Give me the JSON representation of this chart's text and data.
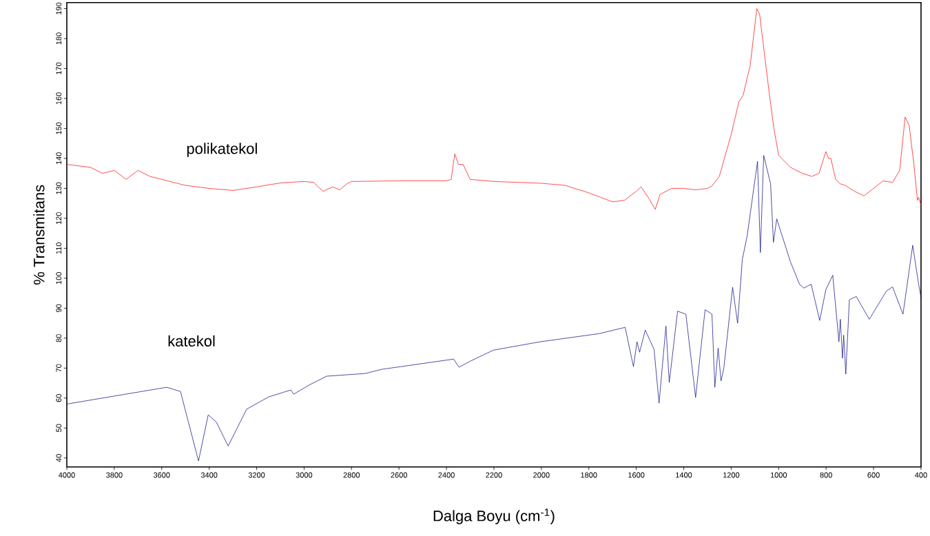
{
  "chart_data": {
    "type": "line",
    "xlabel": "Dalga Boyu (cm$^{-1}$)",
    "ylabel": "% Transmitans",
    "xlim": [
      4000,
      400
    ],
    "ylim": [
      37,
      192
    ],
    "xticks": [
      4000,
      3800,
      3600,
      3400,
      3200,
      3000,
      2800,
      2600,
      2400,
      2200,
      2000,
      1800,
      1600,
      1400,
      1200,
      1000,
      800,
      600,
      400
    ],
    "yticks": [
      40,
      50,
      60,
      70,
      80,
      90,
      100,
      110,
      120,
      130,
      140,
      150,
      160,
      170,
      180,
      190
    ],
    "grid": false,
    "legend": false,
    "marker": "none",
    "line_style": "solid",
    "series": [
      {
        "name": "polikatekol",
        "color": "#ff0000",
        "x": [
          4000,
          3900,
          3850,
          3800,
          3750,
          3700,
          3650,
          3600,
          3500,
          3400,
          3300,
          3200,
          3100,
          3000,
          2960,
          2920,
          2880,
          2850,
          2820,
          2800,
          2600,
          2400,
          2380,
          2365,
          2350,
          2330,
          2300,
          2200,
          2000,
          1900,
          1800,
          1700,
          1650,
          1600,
          1580,
          1550,
          1520,
          1500,
          1450,
          1400,
          1350,
          1300,
          1281,
          1250,
          1200,
          1167,
          1150,
          1120,
          1092,
          1080,
          1060,
          1040,
          1020,
          1000,
          950,
          900,
          860,
          830,
          810,
          801,
          790,
          780,
          760,
          740,
          720,
          700,
          680,
          640,
          600,
          560,
          520,
          490,
          467,
          450,
          430,
          415,
          410,
          400
        ],
        "values": [
          138,
          137,
          135,
          136,
          133,
          136,
          134,
          133,
          131,
          130,
          129.3,
          130.5,
          131.8,
          132.3,
          132,
          129,
          130.5,
          129.5,
          131.5,
          132.3,
          132.5,
          132.5,
          133,
          141.5,
          138,
          138,
          133,
          132.3,
          131.7,
          131,
          128.5,
          125.5,
          126,
          129,
          130.5,
          127,
          123,
          128,
          130,
          130,
          129.5,
          130,
          130.8,
          134,
          148,
          159,
          161,
          171,
          190,
          188,
          175,
          162,
          150,
          141,
          137,
          135,
          134,
          135,
          140,
          142.3,
          140,
          140,
          133,
          131.5,
          131,
          130,
          129,
          127.5,
          130,
          132.5,
          132,
          136,
          153.8,
          151,
          138,
          126,
          127,
          124.4
        ]
      },
      {
        "name": "katekol",
        "color": "#000080",
        "x": [
          4000,
          3579,
          3521,
          3445,
          3404,
          3370,
          3320,
          3242,
          3149,
          3056,
          3044,
          2975,
          2905,
          2742,
          2672,
          2370,
          2347,
          2300,
          2202,
          2004,
          1757,
          1647,
          1612,
          1597,
          1586,
          1562,
          1525,
          1504,
          1475,
          1461,
          1426,
          1391,
          1350,
          1310,
          1281,
          1269,
          1255,
          1243,
          1231,
          1194,
          1173,
          1153,
          1133,
          1089,
          1077,
          1063,
          1034,
          1022,
          1008,
          950,
          912,
          894,
          863,
          827,
          801,
          772,
          746,
          740,
          731,
          726,
          717,
          702,
          673,
          618,
          546,
          520,
          476,
          435,
          415,
          400
        ],
        "values": [
          58,
          63.6,
          62.2,
          39,
          54.4,
          52,
          44,
          56.3,
          60.4,
          62.7,
          61.3,
          64.5,
          67.3,
          68.2,
          69.6,
          73,
          70.3,
          72.3,
          76,
          78.8,
          81.5,
          83.6,
          70.5,
          78.8,
          75.3,
          82.7,
          76.2,
          58.3,
          84,
          65.2,
          89,
          88,
          60.2,
          89.5,
          88,
          63.6,
          76.7,
          65.7,
          70,
          97,
          85,
          106.3,
          114,
          139,
          108.6,
          141,
          131.5,
          112,
          119.8,
          105.4,
          98,
          96.7,
          98,
          85.9,
          96.2,
          101,
          78.8,
          86.3,
          73.3,
          81,
          68,
          92.8,
          93.9,
          86.3,
          95.7,
          97.1,
          88,
          111,
          100.5,
          93.4
        ]
      }
    ]
  }
}
